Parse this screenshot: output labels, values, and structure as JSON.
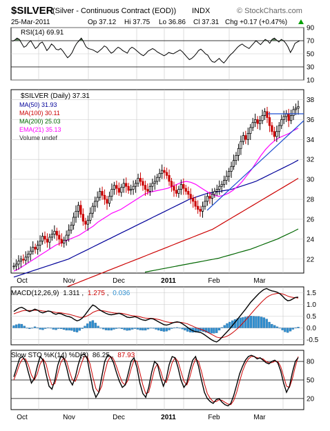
{
  "header": {
    "ticker": "$SILVER",
    "description": "(Silver - Continuous Contract (EOD))",
    "exchange": "INDX",
    "watermark": "© StockCharts.com",
    "date": "25-Mar-2011",
    "open": "Op 37.12",
    "high": "Hi 37.75",
    "low": "Lo 36.86",
    "close": "Cl 37.31",
    "change": "Chg +0.17 (+0.47%)",
    "change_arrow": "up-triangle-icon"
  },
  "colors": {
    "price_up": "#000000",
    "price_down": "#cc0000",
    "ma50": "#000099",
    "ma100": "#cc0000",
    "ma200": "#006600",
    "ema21": "#ff00ff",
    "volume": "#000000",
    "rsi_fill": "#5a7a5a",
    "macd_hist": "#2f8fd0",
    "sto_k": "#000000",
    "sto_d": "#cc0000",
    "trendline": "#1f4fd0",
    "grid": "#c8c8c8",
    "date_axis_divider": "#888888"
  },
  "chart_data": [
    {
      "type": "line",
      "panel": "rsi",
      "title": "RSI(14) 69.91",
      "y_ticks": [
        "90",
        "70",
        "50",
        "30",
        "10"
      ],
      "ylim": [
        10,
        90
      ],
      "reference_lines": [
        70,
        30
      ],
      "fill_above": 70,
      "values": [
        69,
        71,
        74,
        72,
        66,
        60,
        62,
        67,
        70,
        64,
        58,
        61,
        66,
        68,
        62,
        55,
        59,
        65,
        62,
        57,
        56,
        58,
        54,
        49,
        44,
        47,
        52,
        60,
        66,
        70,
        74,
        68,
        61,
        58,
        57,
        56,
        54,
        52,
        55,
        58,
        62,
        60,
        55,
        51,
        53,
        57,
        60,
        58,
        55,
        53,
        51,
        57,
        60,
        58,
        55,
        52,
        49,
        47,
        50,
        54,
        56,
        58,
        56,
        53,
        51,
        49,
        47,
        49,
        52,
        51,
        50,
        52,
        54,
        56,
        53,
        49,
        45,
        41,
        43,
        46,
        50,
        55,
        57,
        54,
        50,
        48,
        42,
        38,
        37,
        40,
        43,
        39,
        36,
        40,
        45,
        49,
        52,
        56,
        60,
        63,
        65,
        62,
        60,
        58,
        62,
        66,
        70,
        67,
        64,
        68,
        72,
        70,
        66,
        72,
        74,
        71,
        68,
        72,
        70,
        66,
        60,
        52,
        58,
        66,
        68,
        69.91
      ]
    },
    {
      "type": "line",
      "panel": "price",
      "title": "$SILVER (Daily) 37.31",
      "y_ticks": [
        "38",
        "36",
        "34",
        "32",
        "30",
        "28",
        "26",
        "24",
        "22"
      ],
      "ylim": [
        20.6,
        39
      ],
      "x_labels": [
        "Oct",
        "Nov",
        "Dec",
        "2011",
        "Feb",
        "Mar"
      ],
      "legend": [
        {
          "key": "ma50",
          "label": "MA(50) 31.93"
        },
        {
          "key": "ma100",
          "label": "MA(100) 30.11"
        },
        {
          "key": "ma200",
          "label": "MA(200) 25.03"
        },
        {
          "key": "ema21",
          "label": "EMA(21) 35.13"
        },
        {
          "key": "volume",
          "label": "Volume undef"
        }
      ],
      "close": [
        21.3,
        21.5,
        21.8,
        22.0,
        21.9,
        22.2,
        22.5,
        22.8,
        23.2,
        23.0,
        23.4,
        23.8,
        24.3,
        24.0,
        23.7,
        24.2,
        24.5,
        24.8,
        24.4,
        24.0,
        23.6,
        23.9,
        24.4,
        24.9,
        25.4,
        26.2,
        26.8,
        27.4,
        26.5,
        25.8,
        25.5,
        25.9,
        26.6,
        27.3,
        27.8,
        28.2,
        28.8,
        28.4,
        28.0,
        27.6,
        28.3,
        29.0,
        29.4,
        29.1,
        28.7,
        29.2,
        29.6,
        29.3,
        28.9,
        29.0,
        29.3,
        29.6,
        30.1,
        29.8,
        29.4,
        29.0,
        28.8,
        29.3,
        29.6,
        29.8,
        30.2,
        30.6,
        30.9,
        30.7,
        30.4,
        29.8,
        29.3,
        28.9,
        28.6,
        29.0,
        29.5,
        29.1,
        28.8,
        28.5,
        28.1,
        27.8,
        27.3,
        27.0,
        26.8,
        27.3,
        27.8,
        28.3,
        28.1,
        28.5,
        28.8,
        29.0,
        29.3,
        29.5,
        29.9,
        30.3,
        30.8,
        31.3,
        31.9,
        32.4,
        33.1,
        33.8,
        34.4,
        34.0,
        34.6,
        35.2,
        35.7,
        36.0,
        35.6,
        35.9,
        36.4,
        36.8,
        36.2,
        35.4,
        34.8,
        34.3,
        34.8,
        35.4,
        36.0,
        36.3,
        36.6,
        35.9,
        36.4,
        37.0,
        37.14,
        37.31
      ],
      "ma50": [
        20.2,
        20.4,
        20.6,
        20.8,
        21.0,
        21.2,
        21.4,
        21.6,
        21.8,
        22.0,
        22.3,
        22.6,
        22.9,
        23.2,
        23.5,
        23.8,
        24.1,
        24.4,
        24.7,
        25.0,
        25.3,
        25.6,
        25.9,
        26.2,
        26.5,
        26.8,
        27.1,
        27.4,
        27.7,
        28.0,
        28.2,
        28.4,
        28.6,
        28.7,
        28.8,
        28.9,
        29.0,
        29.2,
        29.4,
        29.6,
        29.8,
        30.1,
        30.4,
        30.7,
        31.0,
        31.3,
        31.6,
        31.93
      ],
      "ma100": [
        18.2,
        18.4,
        18.6,
        18.8,
        19.0,
        19.2,
        19.4,
        19.6,
        19.8,
        20.0,
        20.2,
        20.4,
        20.6,
        20.8,
        21.0,
        21.2,
        21.4,
        21.6,
        21.8,
        22.0,
        22.2,
        22.4,
        22.6,
        22.8,
        23.0,
        23.2,
        23.4,
        23.6,
        23.8,
        24.0,
        24.2,
        24.4,
        24.6,
        24.8,
        25.0,
        25.3,
        25.6,
        25.9,
        26.2,
        26.5,
        26.8,
        27.1,
        27.4,
        27.7,
        28.0,
        28.3,
        28.6,
        28.9,
        29.2,
        29.5,
        29.8,
        30.11
      ],
      "ma200": [
        20.7,
        20.8,
        20.9,
        21.0,
        21.1,
        21.2,
        21.3,
        21.4,
        21.5,
        21.6,
        21.7,
        21.8,
        21.9,
        22.0,
        22.1,
        22.25,
        22.4,
        22.55,
        22.7,
        22.85,
        23.0,
        23.2,
        23.4,
        23.6,
        23.8,
        24.0,
        24.25,
        24.5,
        24.75,
        25.03
      ],
      "ema21": [
        20.8,
        21.0,
        21.3,
        21.6,
        21.9,
        22.2,
        22.5,
        22.8,
        23.1,
        23.4,
        23.6,
        23.8,
        24.0,
        24.2,
        24.4,
        24.7,
        25.0,
        25.3,
        25.7,
        26.0,
        26.3,
        26.6,
        26.8,
        27.0,
        27.3,
        27.6,
        27.9,
        28.2,
        28.5,
        28.7,
        28.8,
        28.9,
        29.0,
        29.1,
        29.3,
        29.5,
        29.7,
        29.8,
        29.7,
        29.5,
        29.2,
        28.9,
        28.6,
        28.4,
        28.3,
        28.4,
        28.6,
        28.9,
        29.3,
        29.8,
        30.4,
        31.0,
        31.7,
        32.4,
        33.0,
        33.5,
        33.9,
        34.2,
        34.4,
        34.6,
        34.9,
        35.13
      ]
    },
    {
      "type": "bar",
      "panel": "macd",
      "title_prefix": "MACD(12,26,9)",
      "macd_label": "1.311",
      "signal_label": "1.275",
      "hist_label": "0.036",
      "y_ticks": [
        "1.5",
        "1.0",
        "0.5",
        "0.0",
        "-0.5"
      ],
      "ylim": [
        -0.72,
        1.75
      ],
      "macd": [
        0.7,
        0.78,
        0.85,
        0.88,
        0.82,
        0.74,
        0.7,
        0.74,
        0.8,
        0.76,
        0.68,
        0.64,
        0.68,
        0.72,
        0.7,
        0.62,
        0.58,
        0.62,
        0.6,
        0.55,
        0.5,
        0.48,
        0.44,
        0.36,
        0.3,
        0.34,
        0.42,
        0.55,
        0.7,
        0.85,
        0.98,
        0.92,
        0.82,
        0.74,
        0.68,
        0.62,
        0.58,
        0.56,
        0.58,
        0.6,
        0.62,
        0.58,
        0.52,
        0.46,
        0.44,
        0.46,
        0.48,
        0.44,
        0.38,
        0.34,
        0.32,
        0.36,
        0.4,
        0.38,
        0.32,
        0.26,
        0.2,
        0.14,
        0.12,
        0.15,
        0.2,
        0.24,
        0.26,
        0.24,
        0.18,
        0.1,
        0.02,
        -0.06,
        -0.12,
        -0.16,
        -0.18,
        -0.2,
        -0.26,
        -0.34,
        -0.42,
        -0.5,
        -0.56,
        -0.6,
        -0.52,
        -0.4,
        -0.28,
        -0.16,
        -0.04,
        0.1,
        0.24,
        0.38,
        0.52,
        0.66,
        0.8,
        0.95,
        1.1,
        1.22,
        1.34,
        1.46,
        1.56,
        1.64,
        1.68,
        1.62,
        1.58,
        1.56,
        1.52,
        1.46,
        1.36,
        1.24,
        1.16,
        1.18,
        1.24,
        1.3,
        1.311
      ],
      "signal": [
        0.6,
        0.64,
        0.68,
        0.72,
        0.74,
        0.74,
        0.74,
        0.74,
        0.75,
        0.75,
        0.74,
        0.72,
        0.71,
        0.71,
        0.7,
        0.68,
        0.66,
        0.65,
        0.64,
        0.62,
        0.6,
        0.58,
        0.55,
        0.52,
        0.48,
        0.45,
        0.45,
        0.47,
        0.52,
        0.58,
        0.66,
        0.71,
        0.74,
        0.74,
        0.73,
        0.71,
        0.68,
        0.66,
        0.64,
        0.63,
        0.63,
        0.62,
        0.6,
        0.57,
        0.54,
        0.52,
        0.51,
        0.5,
        0.47,
        0.44,
        0.42,
        0.41,
        0.41,
        0.4,
        0.38,
        0.36,
        0.33,
        0.29,
        0.26,
        0.24,
        0.23,
        0.23,
        0.24,
        0.24,
        0.23,
        0.2,
        0.17,
        0.12,
        0.07,
        0.02,
        -0.02,
        -0.06,
        -0.1,
        -0.15,
        -0.21,
        -0.27,
        -0.33,
        -0.39,
        -0.42,
        -0.42,
        -0.39,
        -0.35,
        -0.29,
        -0.21,
        -0.12,
        -0.02,
        0.09,
        0.21,
        0.33,
        0.46,
        0.59,
        0.72,
        0.85,
        0.97,
        1.09,
        1.2,
        1.3,
        1.37,
        1.42,
        1.45,
        1.47,
        1.47,
        1.45,
        1.41,
        1.36,
        1.32,
        1.3,
        1.29,
        1.275
      ]
    },
    {
      "type": "line",
      "panel": "slow_sto",
      "title_prefix": "Slow STO %K(14) %D(3)",
      "k_label": "86.25",
      "d_label": "87.93",
      "y_ticks": [
        "80",
        "50",
        "20"
      ],
      "ylim": [
        2,
        98
      ],
      "reference_lines": [
        80,
        50,
        20
      ],
      "k": [
        55,
        70,
        85,
        88,
        80,
        62,
        45,
        52,
        72,
        88,
        82,
        60,
        40,
        35,
        50,
        74,
        88,
        86,
        70,
        50,
        42,
        55,
        75,
        90,
        92,
        85,
        60,
        35,
        22,
        30,
        55,
        80,
        90,
        88,
        78,
        62,
        48,
        38,
        42,
        60,
        80,
        86,
        70,
        45,
        28,
        22,
        38,
        62,
        80,
        75,
        55,
        40,
        52,
        75,
        88,
        86,
        70,
        50,
        38,
        45,
        65,
        82,
        88,
        72,
        50,
        30,
        20,
        15,
        12,
        18,
        20,
        14,
        10,
        8,
        12,
        25,
        42,
        60,
        72,
        82,
        88,
        90,
        88,
        84,
        86,
        82,
        78,
        76,
        80,
        82,
        78,
        65,
        45,
        30,
        40,
        62,
        80,
        86.25
      ],
      "d": [
        50,
        62,
        76,
        84,
        84,
        74,
        58,
        50,
        60,
        76,
        84,
        76,
        56,
        42,
        44,
        60,
        78,
        86,
        80,
        64,
        50,
        48,
        60,
        76,
        88,
        88,
        76,
        54,
        36,
        30,
        40,
        62,
        80,
        88,
        84,
        72,
        58,
        46,
        42,
        50,
        68,
        82,
        80,
        62,
        42,
        28,
        30,
        48,
        68,
        76,
        66,
        50,
        46,
        60,
        78,
        86,
        80,
        64,
        48,
        42,
        54,
        72,
        84,
        80,
        64,
        44,
        28,
        20,
        15,
        15,
        18,
        17,
        14,
        11,
        10,
        17,
        30,
        48,
        64,
        76,
        84,
        88,
        88,
        86,
        85,
        84,
        80,
        78,
        78,
        80,
        80,
        72,
        56,
        40,
        38,
        52,
        72,
        87.93
      ]
    }
  ]
}
